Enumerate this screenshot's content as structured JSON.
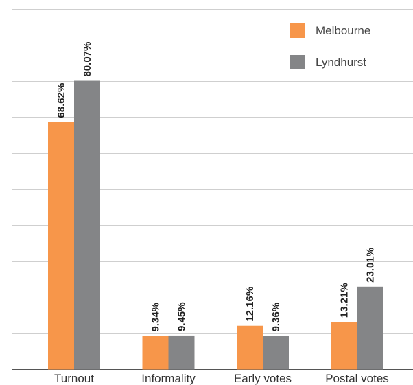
{
  "chart_data": {
    "type": "bar",
    "categories": [
      "Turnout",
      "Informality",
      "Early votes",
      "Postal votes"
    ],
    "series": [
      {
        "name": "Melbourne",
        "color": "#f7964a",
        "values": [
          68.62,
          9.34,
          12.16,
          13.21
        ],
        "labels": [
          "68.62%",
          "9.34%",
          "12.16%",
          "13.21%"
        ]
      },
      {
        "name": "Lyndhurst",
        "color": "#848587",
        "values": [
          80.07,
          9.45,
          9.36,
          23.01
        ],
        "labels": [
          "80.07%",
          "9.45%",
          "9.36%",
          "23.01%"
        ]
      }
    ],
    "ylim": [
      0,
      100
    ],
    "grid": true,
    "legend_position": "top-right",
    "title": "",
    "xlabel": "",
    "ylabel": ""
  }
}
